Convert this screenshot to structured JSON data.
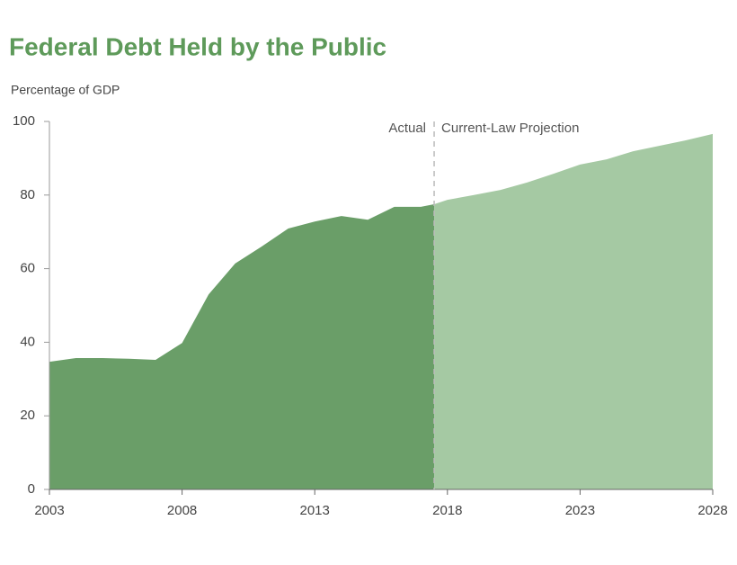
{
  "chart_data": {
    "type": "area",
    "title": "Federal Debt Held by the Public",
    "y_label": "Percentage of GDP",
    "series": [
      {
        "name": "Actual",
        "color": "#6a9e68",
        "x": [
          2003,
          2004,
          2005,
          2006,
          2007,
          2008,
          2009,
          2010,
          2011,
          2012,
          2013,
          2014,
          2015,
          2016,
          2017,
          2017.5
        ],
        "values": [
          34.7,
          35.7,
          35.7,
          35.5,
          35.2,
          39.8,
          53,
          61.4,
          66,
          70.9,
          72.8,
          74.3,
          73.3,
          76.8,
          76.8,
          77.5
        ]
      },
      {
        "name": "Current-Law Projection",
        "color": "#a5c9a3",
        "x": [
          2017.5,
          2018,
          2019,
          2020,
          2021,
          2022,
          2023,
          2024,
          2025,
          2026,
          2027,
          2028
        ],
        "values": [
          77.5,
          78.7,
          80,
          81.4,
          83.4,
          85.8,
          88.3,
          89.7,
          91.9,
          93.4,
          94.9,
          96.6
        ]
      }
    ],
    "divider_x": 2017.5,
    "xlim": [
      2003,
      2028
    ],
    "xticks": [
      2003,
      2008,
      2013,
      2018,
      2023,
      2028
    ],
    "ylim": [
      0,
      100
    ],
    "yticks": [
      0,
      20,
      40,
      60,
      80,
      100
    ]
  }
}
